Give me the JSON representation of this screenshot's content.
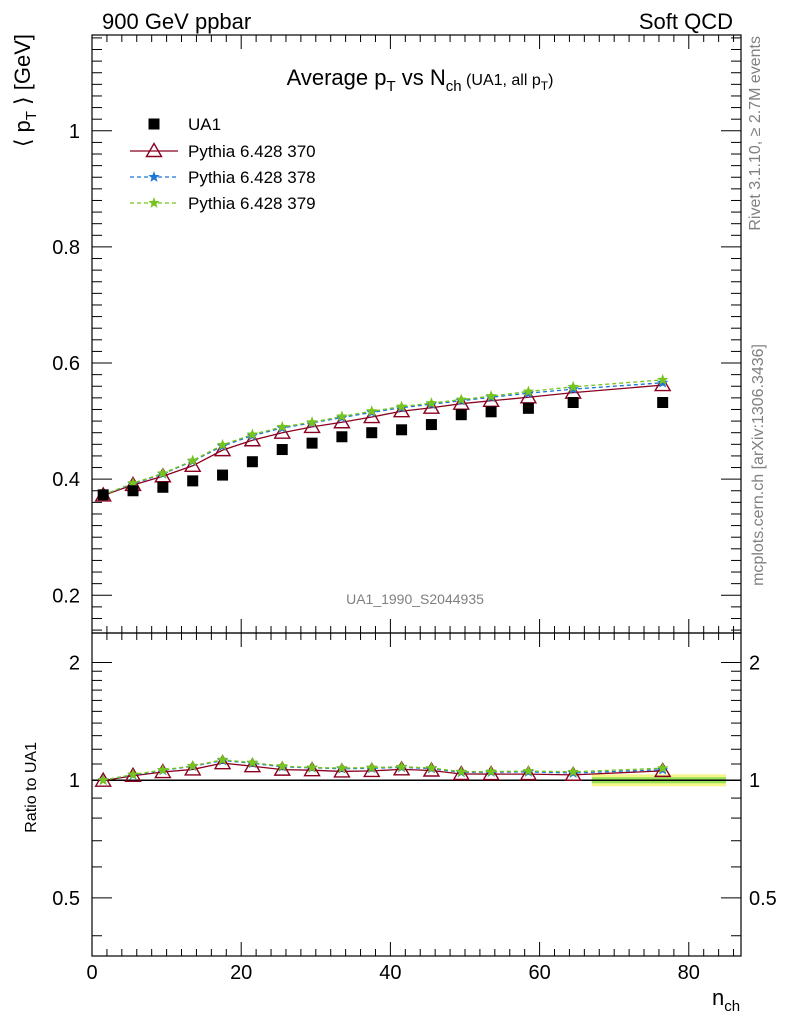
{
  "header": {
    "left": "900 GeV ppbar",
    "right": "Soft QCD"
  },
  "side_text": {
    "top": "Rivet 3.1.10, ≥ 2.7M events",
    "bottom": "mcplots.cern.ch [arXiv:1306.3436]"
  },
  "plot_title": {
    "main": "Average p",
    "main_sub": "T",
    "vs": " vs N",
    "vs_sub": "ch",
    "paren_open": " (UA1, all p",
    "paren_sub": "T",
    "paren_close": ")"
  },
  "analysis_id": "UA1_1990_S2044935",
  "ylabel_main": {
    "open": "⟨ p",
    "sub": "T",
    "close": " ⟩ [GeV]"
  },
  "ylabel_ratio": "Ratio to UA1",
  "xlabel": {
    "main": "n",
    "sub": "ch"
  },
  "legend": [
    {
      "label": "UA1"
    },
    {
      "label": "Pythia 6.428 370"
    },
    {
      "label": "Pythia 6.428 378"
    },
    {
      "label": "Pythia 6.428 379"
    }
  ],
  "colors": {
    "ua1": "#000000",
    "p370": "#8b0020",
    "p378": "#1a78d6",
    "p379": "#77c41e",
    "band_yellow": "#f5f58a",
    "band_green": "#98e05a"
  },
  "chart_data": {
    "type": "scatter",
    "main": {
      "xlim": [
        0,
        87
      ],
      "ylim": [
        0.135,
        1.165
      ],
      "yticks": [
        0.2,
        0.4,
        0.6,
        0.8,
        1
      ],
      "ytick_labels": [
        "0.2",
        "0.4",
        "0.6",
        "0.8",
        "1"
      ]
    },
    "ratio": {
      "ylim": [
        0.355,
        2.38
      ],
      "log_scale": true,
      "yticks": [
        0.5,
        1,
        2
      ],
      "ytick_labels": [
        "0.5",
        "1",
        "2"
      ],
      "band": {
        "xmin": 67,
        "xmax": 85
      }
    },
    "xticks": [
      0,
      20,
      40,
      60,
      80
    ],
    "xtick_labels": [
      "0",
      "20",
      "40",
      "60",
      "80"
    ],
    "x": [
      1.5,
      5.5,
      9.5,
      13.5,
      17.5,
      21.5,
      25.5,
      29.5,
      33.5,
      37.5,
      41.5,
      45.5,
      49.5,
      53.5,
      58.5,
      64.5,
      76.5
    ],
    "series": [
      {
        "name": "UA1",
        "marker": "square",
        "values": [
          0.373,
          0.38,
          0.386,
          0.397,
          0.407,
          0.43,
          0.451,
          0.462,
          0.473,
          0.48,
          0.485,
          0.494,
          0.511,
          0.516,
          0.522,
          0.532,
          0.532
        ]
      },
      {
        "name": "Pythia 6.428 370",
        "marker": "triangle",
        "line": "solid",
        "values": [
          0.372,
          0.39,
          0.405,
          0.423,
          0.45,
          0.467,
          0.48,
          0.49,
          0.498,
          0.507,
          0.517,
          0.523,
          0.53,
          0.535,
          0.541,
          0.549,
          0.562
        ]
      },
      {
        "name": "Pythia 6.428 378",
        "marker": "star",
        "line": "dashed",
        "values": [
          0.373,
          0.392,
          0.409,
          0.431,
          0.457,
          0.475,
          0.488,
          0.497,
          0.506,
          0.515,
          0.523,
          0.529,
          0.535,
          0.541,
          0.548,
          0.555,
          0.566
        ]
      },
      {
        "name": "Pythia 6.428 379",
        "marker": "star",
        "line": "dashed",
        "values": [
          0.373,
          0.393,
          0.41,
          0.432,
          0.459,
          0.477,
          0.49,
          0.498,
          0.508,
          0.517,
          0.525,
          0.531,
          0.537,
          0.543,
          0.551,
          0.559,
          0.571
        ]
      }
    ]
  }
}
